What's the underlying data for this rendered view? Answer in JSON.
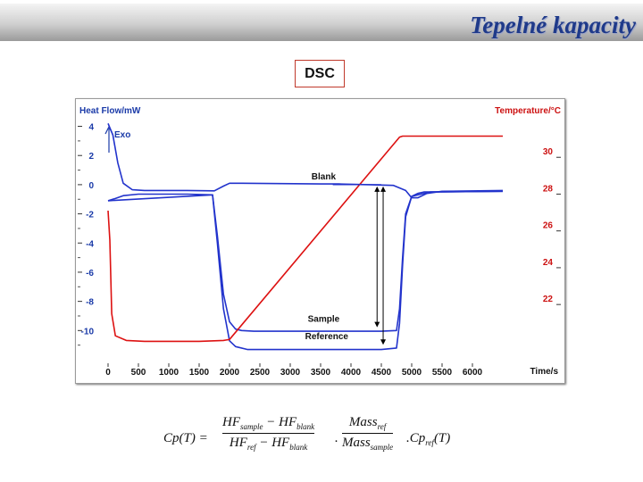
{
  "slide": {
    "title": "Tepelné kapacity",
    "label": "DSC"
  },
  "chart_data": {
    "type": "line",
    "ylabel": "Heat Flow/mW",
    "y2label": "Temperature/°C",
    "xlabel": "Time/s",
    "exo_label": "Exo",
    "xlim": [
      0,
      7000
    ],
    "ylim": [
      -12,
      4.4
    ],
    "y2lim": [
      19,
      32
    ],
    "x_ticks": [
      0,
      500,
      1000,
      1500,
      2000,
      2500,
      3000,
      3500,
      4000,
      4500,
      5000,
      5500,
      6000
    ],
    "y_ticks": [
      4,
      2,
      0,
      -2,
      -4,
      -6,
      -8,
      -10
    ],
    "y2_ticks": [
      30,
      28,
      26,
      24,
      22
    ],
    "annotations": [
      "Blank",
      "Sample",
      "Reference"
    ],
    "colors": {
      "heat_flow": "#2233cc",
      "temperature": "#dd1111",
      "marker": "#000000"
    },
    "series": [
      {
        "axis": "left",
        "color": "#2233cc",
        "x": [
          0,
          80,
          160,
          250,
          400,
          600,
          900,
          1300,
          1750,
          1900,
          2000,
          2100,
          2200,
          3500,
          3800,
          4300,
          4700,
          4900,
          5000,
          5100,
          5250,
          5500,
          6500
        ],
        "y": [
          4.2,
          3.4,
          1.5,
          0.1,
          -0.35,
          -0.4,
          -0.4,
          -0.4,
          -0.42,
          -0.1,
          0.1,
          0.1,
          0.1,
          0.05,
          0.05,
          0.0,
          -0.05,
          -0.4,
          -0.9,
          -0.9,
          -0.6,
          -0.45,
          -0.4
        ]
      },
      {
        "axis": "left",
        "color": "#2233cc",
        "x": [
          0,
          120,
          250,
          500,
          900,
          1300,
          1720,
          1800,
          1900,
          2000,
          2100,
          2200,
          2400,
          3000,
          4000,
          4500,
          4750,
          4800,
          4850,
          4900,
          5000,
          5100,
          5200,
          5300,
          6500
        ],
        "y": [
          -1.1,
          -0.95,
          -0.75,
          -0.65,
          -0.65,
          -0.65,
          -0.7,
          -3.5,
          -7.5,
          -9.4,
          -9.9,
          -10.0,
          -10.05,
          -10.05,
          -10.05,
          -10.05,
          -10.0,
          -8.5,
          -5.0,
          -2.0,
          -0.8,
          -0.6,
          -0.5,
          -0.5,
          -0.45
        ]
      },
      {
        "axis": "left",
        "color": "#2233cc",
        "x": [
          0,
          1720,
          1800,
          1900,
          2000,
          2100,
          2300,
          3000,
          4000,
          4500,
          4750,
          4800,
          4850,
          4900,
          5000,
          5300,
          6500
        ],
        "y": [
          -1.1,
          -0.7,
          -4.0,
          -8.5,
          -10.7,
          -11.1,
          -11.3,
          -11.3,
          -11.3,
          -11.3,
          -11.2,
          -9.5,
          -5.5,
          -2.2,
          -0.8,
          -0.5,
          -0.45
        ]
      },
      {
        "axis": "right",
        "color": "#dd1111",
        "x": [
          0,
          30,
          60,
          120,
          300,
          600,
          1000,
          1500,
          1900,
          2000,
          4800,
          4850,
          4900,
          6500
        ],
        "y": [
          27.1,
          25.5,
          21.5,
          20.3,
          20.05,
          20.0,
          20.0,
          20.0,
          20.05,
          20.1,
          31.1,
          31.15,
          31.15,
          31.15
        ]
      }
    ],
    "markers": [
      {
        "x": 4430,
        "y_from": 0.0,
        "y_to": -9.9
      },
      {
        "x": 4530,
        "y_from": 0.0,
        "y_to": -11.1
      }
    ]
  },
  "formula": {
    "lhs": "Cp(T) =",
    "hf": "HF",
    "mass": "Mass",
    "sample": "sample",
    "blank": "blank",
    "ref": "ref",
    "minus": " − ",
    "dot": ".",
    "tail": ".Cp",
    "tail_end": "(T)"
  }
}
